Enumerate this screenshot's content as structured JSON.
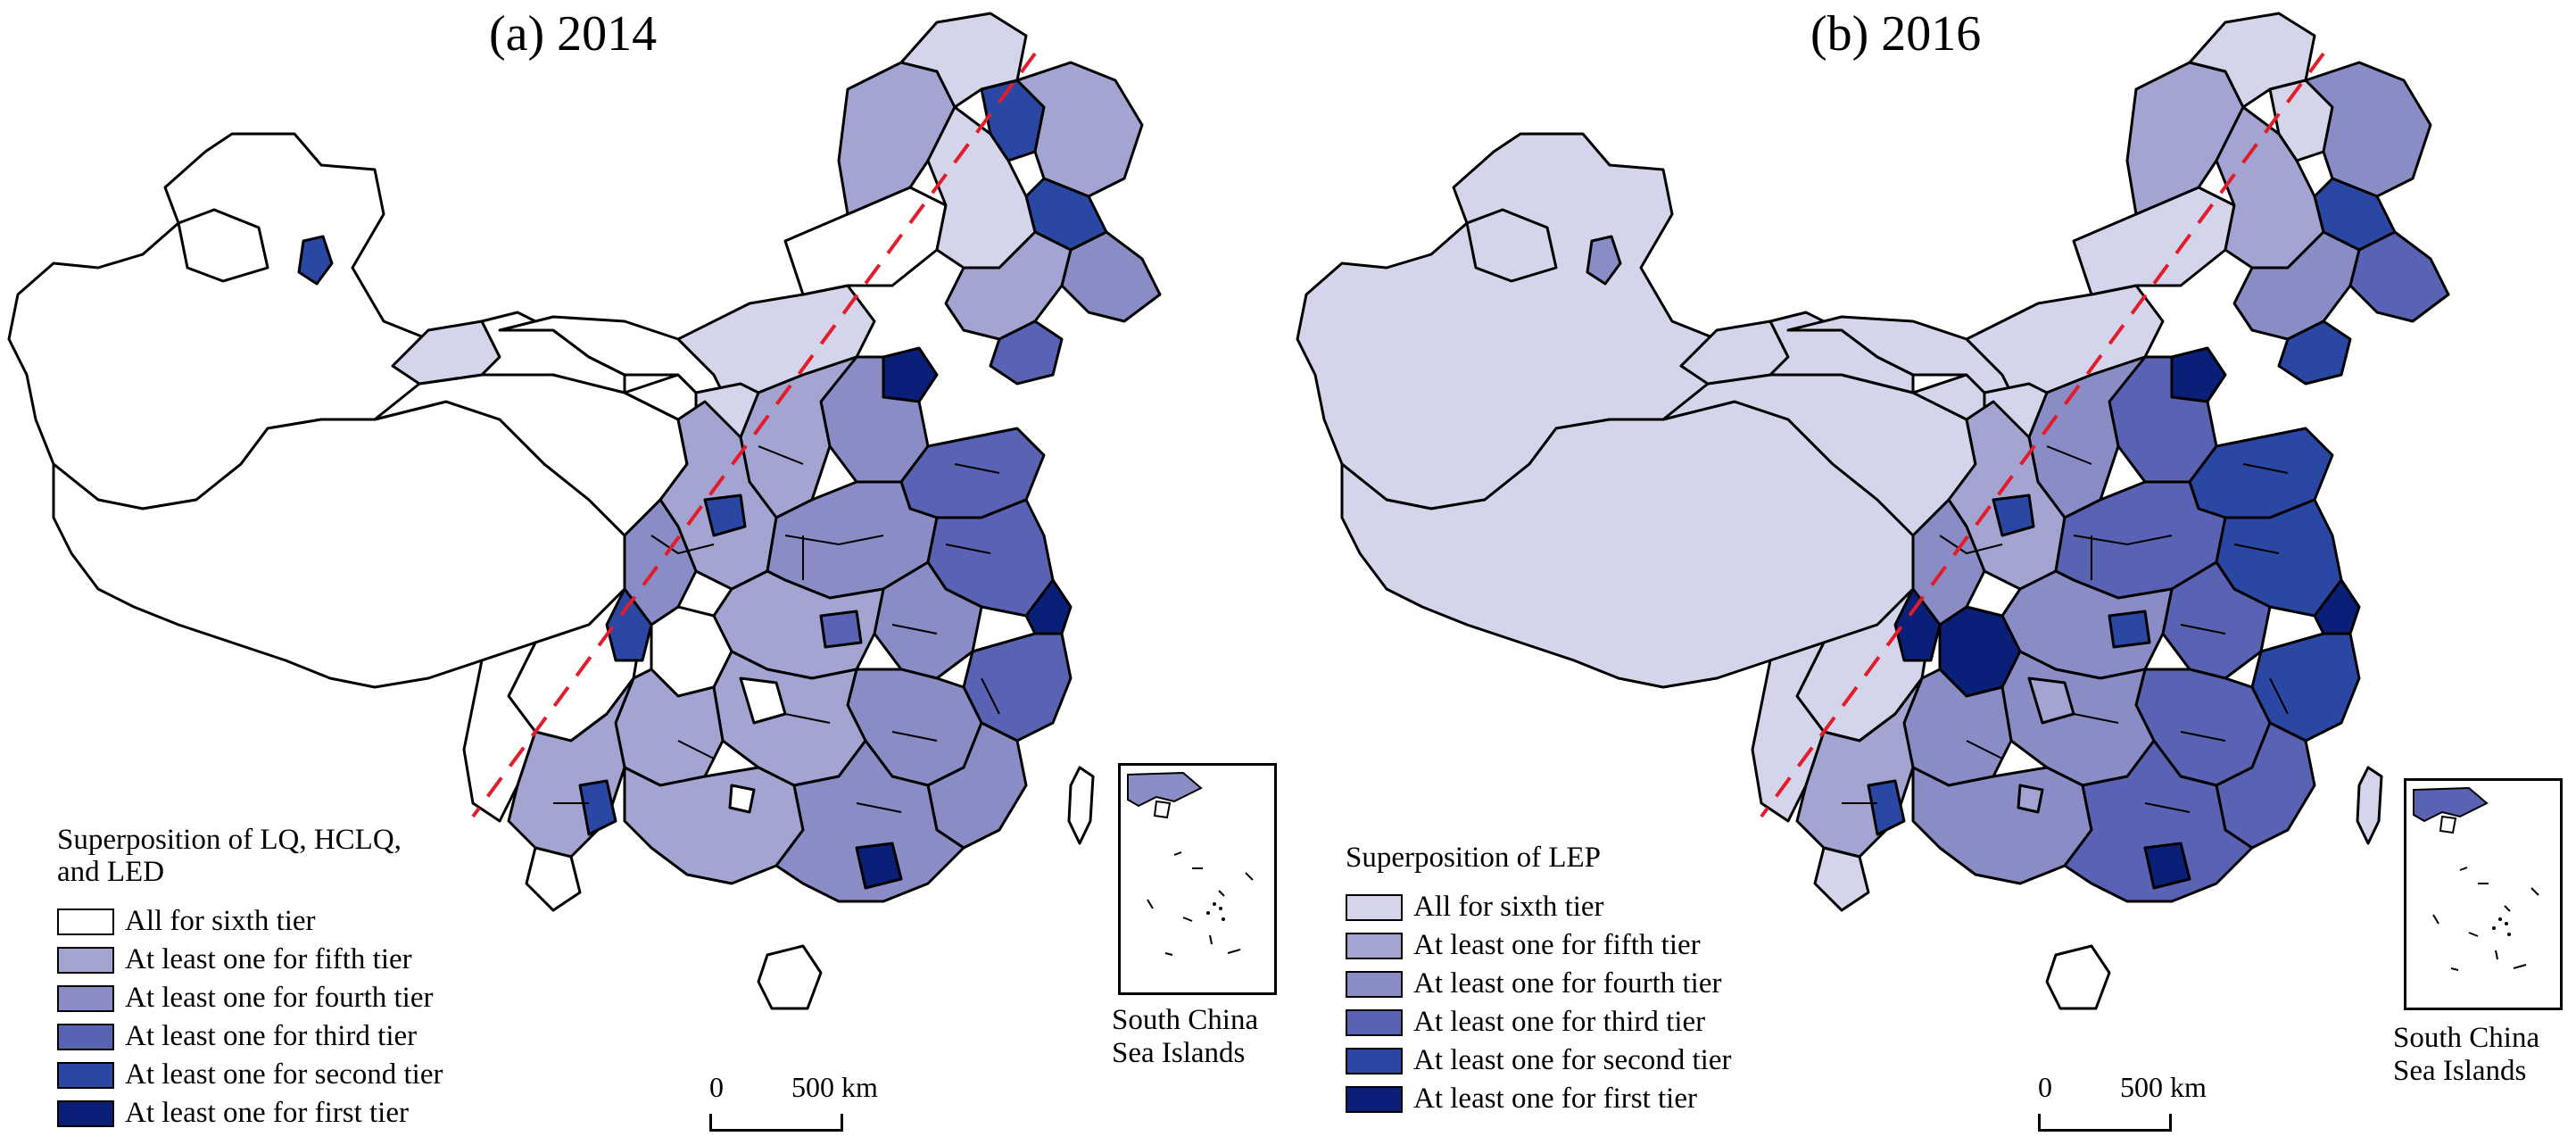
{
  "colors": {
    "tier6": "#ffffff",
    "tier6b": "#d4d4ea",
    "tier5": "#a3a4d2",
    "tier4": "#8a8cc6",
    "tier3": "#5962b3",
    "tier2": "#2b47a4",
    "tier1": "#0a1f78",
    "boundary": "#000000",
    "hu_line": "#e11d2a"
  },
  "panels": [
    {
      "title": "(a) 2014",
      "legend_title": "Superposition of LQ, HCLQ, and LED",
      "scale_zero": "0",
      "scale_distance": "500 km",
      "inset_label": "South China Sea Islands",
      "legend_items": [
        {
          "label": "All for sixth tier",
          "color": "#ffffff"
        },
        {
          "label": "At least one for fifth tier",
          "color": "#a3a4d2"
        },
        {
          "label": "At least one for fourth tier",
          "color": "#8a8cc6"
        },
        {
          "label": "At least one for third tier",
          "color": "#5962b3"
        },
        {
          "label": "At least one for second tier",
          "color": "#2b47a4"
        },
        {
          "label": "At least one for first tier",
          "color": "#0a1f78"
        }
      ]
    },
    {
      "title": "(b) 2016",
      "legend_title": "Superposition of LEP",
      "scale_zero": "0",
      "scale_distance": "500 km",
      "inset_label": "South China Sea Islands",
      "legend_items": [
        {
          "label": "All for sixth tier",
          "color": "#d4d4ea"
        },
        {
          "label": "At least one for fifth tier",
          "color": "#a3a4d2"
        },
        {
          "label": "At least one for fourth tier",
          "color": "#8a8cc6"
        },
        {
          "label": "At least one for third tier",
          "color": "#5962b3"
        },
        {
          "label": "At least one for second tier",
          "color": "#2b47a4"
        },
        {
          "label": "At least one for first tier",
          "color": "#0a1f78"
        }
      ]
    }
  ]
}
